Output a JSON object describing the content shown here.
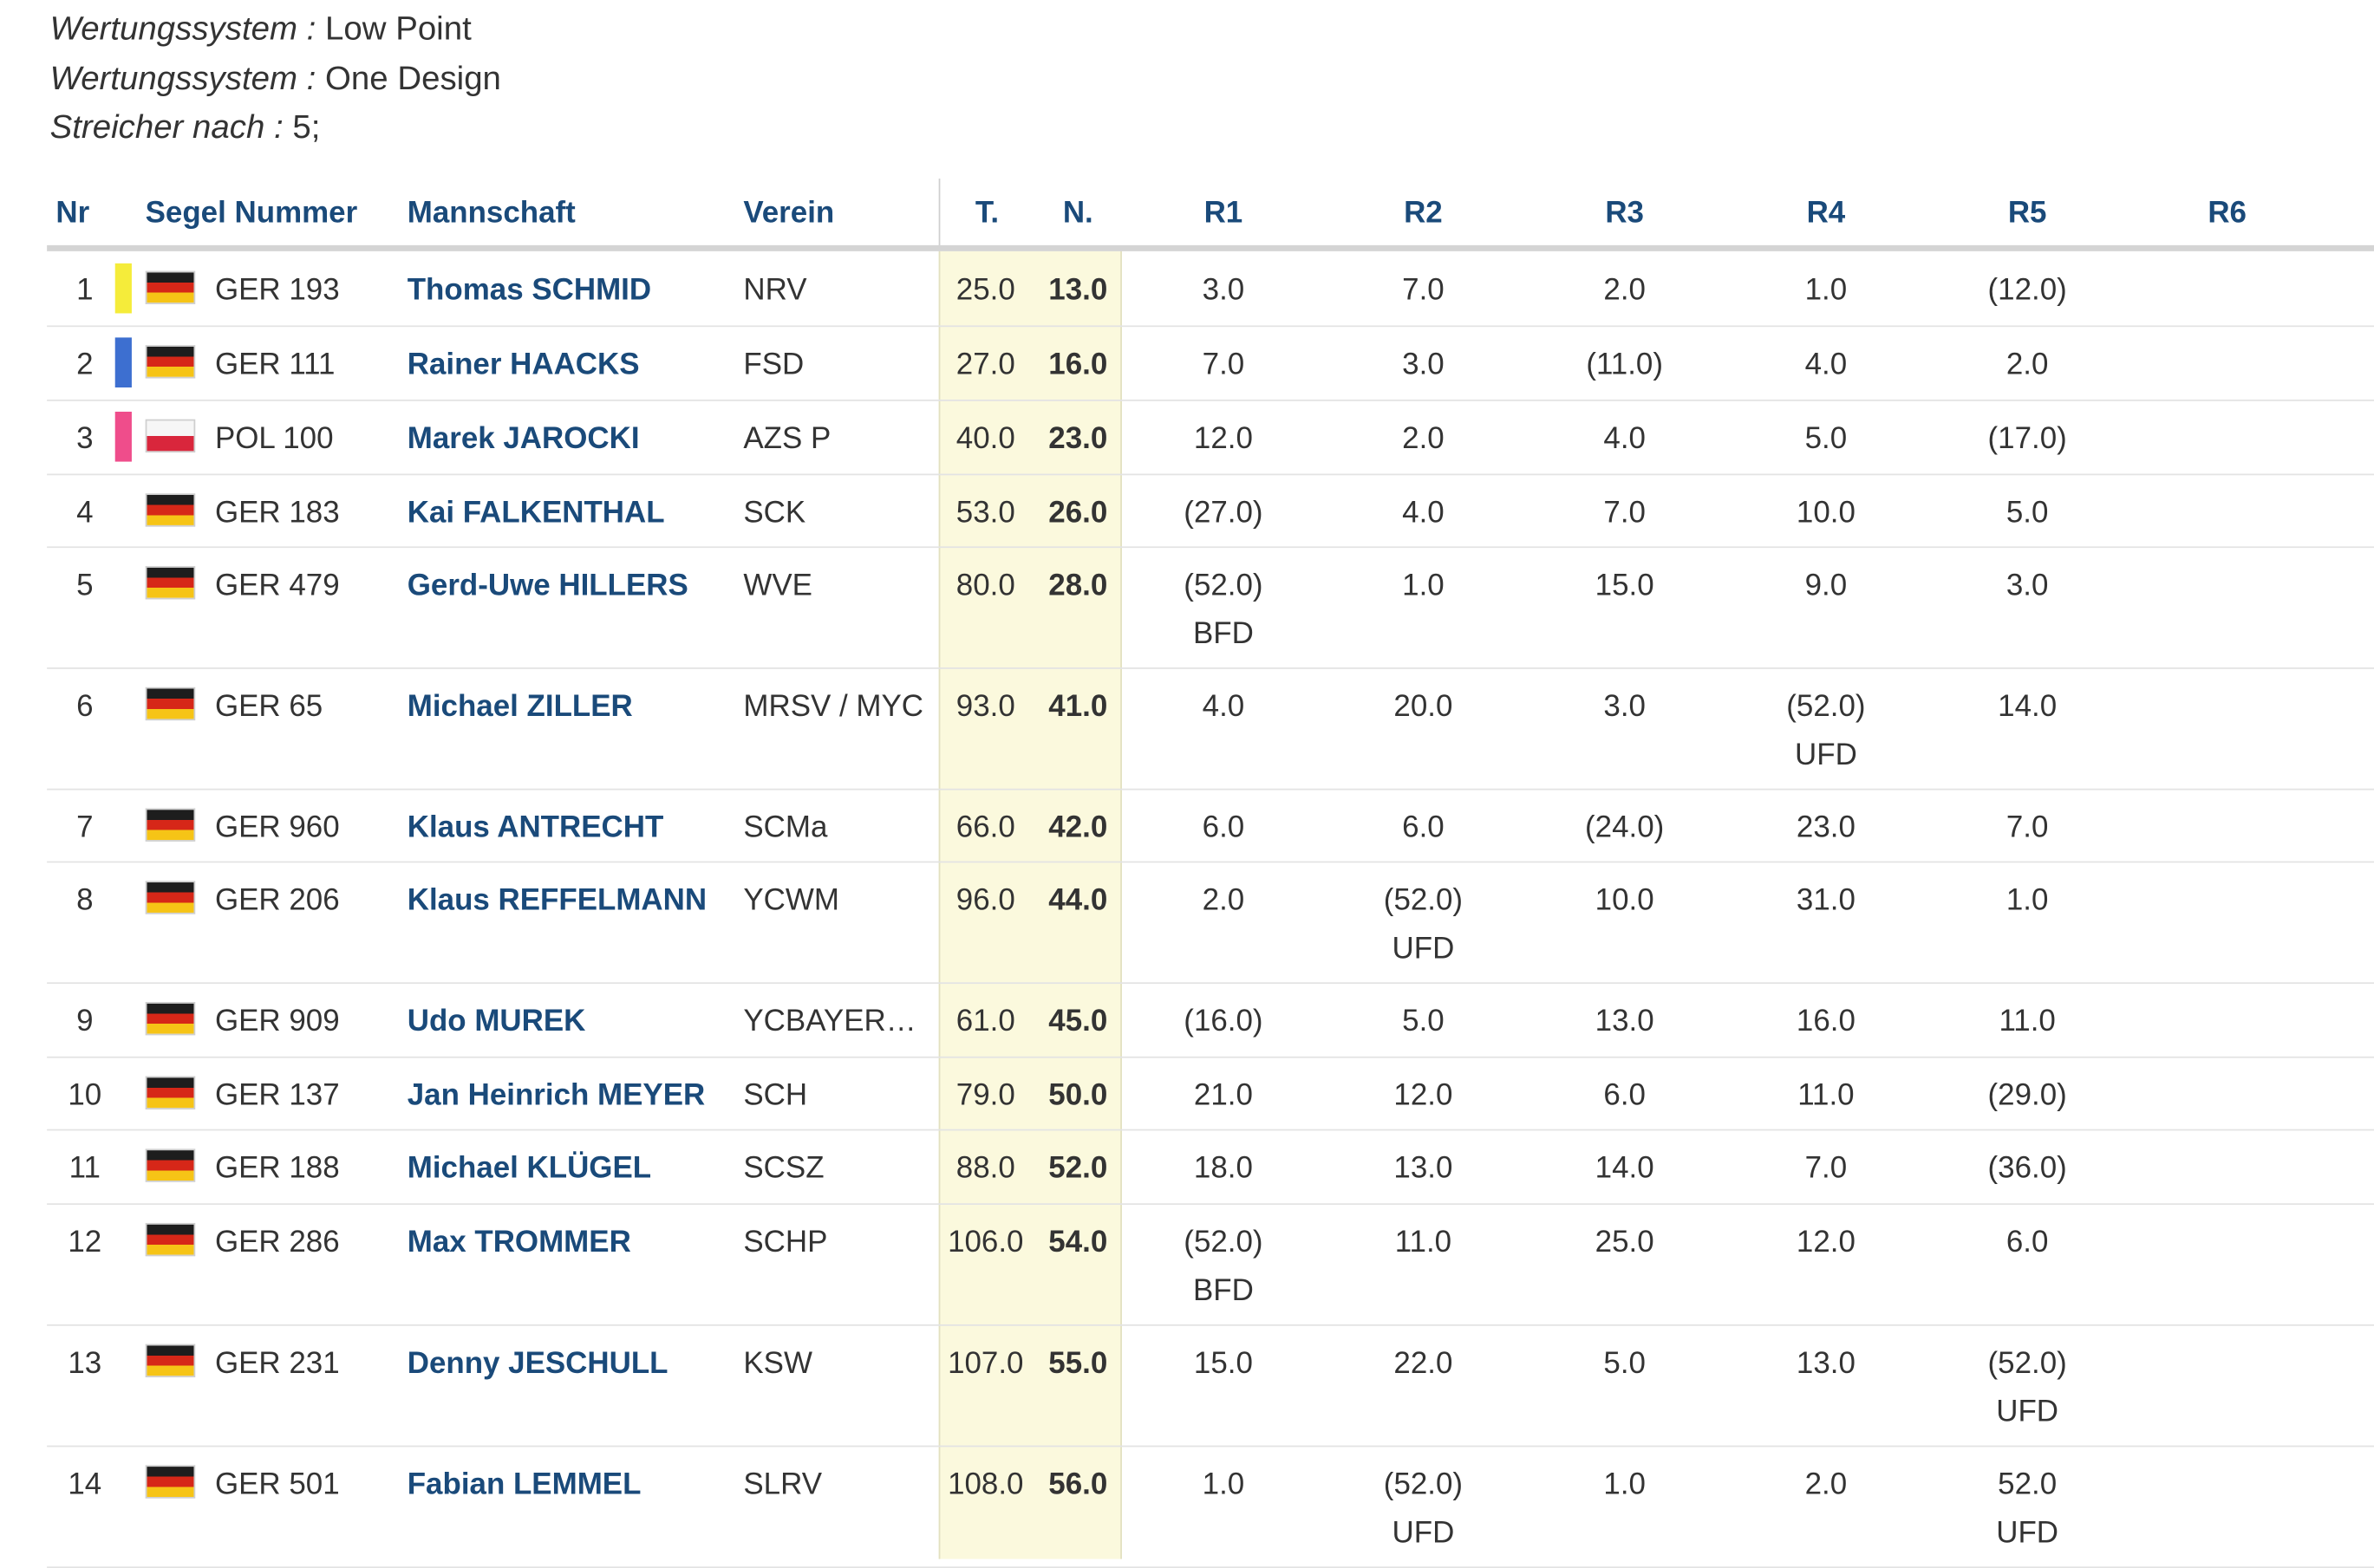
{
  "meta": [
    {
      "key": "Wertungssystem :",
      "value": "Low Point"
    },
    {
      "key": "Wertungssystem :",
      "value": "One Design"
    },
    {
      "key": "Streicher nach :",
      "value": "5;"
    }
  ],
  "table": {
    "headers": {
      "nr": "Nr",
      "sail": "Segel Nummer",
      "crew": "Mannschaft",
      "club": "Verein",
      "total": "T.",
      "net": "N.",
      "races": [
        "R1",
        "R2",
        "R3",
        "R4",
        "R5",
        "R6"
      ]
    },
    "colors": {
      "header_text": "#1a4a7a",
      "highlight_column": "#fbf9dd",
      "gold": "#f5ec3a",
      "silver": "#3d6fd0",
      "bronze": "#ef4d8b"
    },
    "rows": [
      {
        "nr": "1",
        "medal": "gold",
        "flag": "germany-flag-icon",
        "sail": "GER 193",
        "crew": "Thomas SCHMID",
        "club": "NRV",
        "total": "25.0",
        "net": "13.0",
        "races": [
          {
            "score": "3.0",
            "code": ""
          },
          {
            "score": "7.0",
            "code": ""
          },
          {
            "score": "2.0",
            "code": ""
          },
          {
            "score": "1.0",
            "code": ""
          },
          {
            "score": "(12.0)",
            "code": ""
          },
          {
            "score": "",
            "code": ""
          }
        ]
      },
      {
        "nr": "2",
        "medal": "silver",
        "flag": "germany-flag-icon",
        "sail": "GER 111",
        "crew": "Rainer HAACKS",
        "club": "FSD",
        "total": "27.0",
        "net": "16.0",
        "races": [
          {
            "score": "7.0",
            "code": ""
          },
          {
            "score": "3.0",
            "code": ""
          },
          {
            "score": "(11.0)",
            "code": ""
          },
          {
            "score": "4.0",
            "code": ""
          },
          {
            "score": "2.0",
            "code": ""
          },
          {
            "score": "",
            "code": ""
          }
        ]
      },
      {
        "nr": "3",
        "medal": "bronze",
        "flag": "poland-flag-icon",
        "sail": "POL 100",
        "crew": "Marek JAROCKI",
        "club": "AZS P",
        "total": "40.0",
        "net": "23.0",
        "races": [
          {
            "score": "12.0",
            "code": ""
          },
          {
            "score": "2.0",
            "code": ""
          },
          {
            "score": "4.0",
            "code": ""
          },
          {
            "score": "5.0",
            "code": ""
          },
          {
            "score": "(17.0)",
            "code": ""
          },
          {
            "score": "",
            "code": ""
          }
        ]
      },
      {
        "nr": "4",
        "medal": "",
        "flag": "germany-flag-icon",
        "sail": "GER 183",
        "crew": "Kai FALKENTHAL",
        "club": "SCK",
        "total": "53.0",
        "net": "26.0",
        "races": [
          {
            "score": "(27.0)",
            "code": ""
          },
          {
            "score": "4.0",
            "code": ""
          },
          {
            "score": "7.0",
            "code": ""
          },
          {
            "score": "10.0",
            "code": ""
          },
          {
            "score": "5.0",
            "code": ""
          },
          {
            "score": "",
            "code": ""
          }
        ]
      },
      {
        "nr": "5",
        "medal": "",
        "flag": "germany-flag-icon",
        "sail": "GER 479",
        "crew": "Gerd-Uwe HILLERS",
        "club": "WVE",
        "total": "80.0",
        "net": "28.0",
        "races": [
          {
            "score": "(52.0)",
            "code": "BFD"
          },
          {
            "score": "1.0",
            "code": ""
          },
          {
            "score": "15.0",
            "code": ""
          },
          {
            "score": "9.0",
            "code": ""
          },
          {
            "score": "3.0",
            "code": ""
          },
          {
            "score": "",
            "code": ""
          }
        ]
      },
      {
        "nr": "6",
        "medal": "",
        "flag": "germany-flag-icon",
        "sail": "GER 65",
        "crew": "Michael ZILLER",
        "club": "MRSV / MYC",
        "total": "93.0",
        "net": "41.0",
        "races": [
          {
            "score": "4.0",
            "code": ""
          },
          {
            "score": "20.0",
            "code": ""
          },
          {
            "score": "3.0",
            "code": ""
          },
          {
            "score": "(52.0)",
            "code": "UFD"
          },
          {
            "score": "14.0",
            "code": ""
          },
          {
            "score": "",
            "code": ""
          }
        ]
      },
      {
        "nr": "7",
        "medal": "",
        "flag": "germany-flag-icon",
        "sail": "GER 960",
        "crew": "Klaus ANTRECHT",
        "club": "SCMa",
        "total": "66.0",
        "net": "42.0",
        "races": [
          {
            "score": "6.0",
            "code": ""
          },
          {
            "score": "6.0",
            "code": ""
          },
          {
            "score": "(24.0)",
            "code": ""
          },
          {
            "score": "23.0",
            "code": ""
          },
          {
            "score": "7.0",
            "code": ""
          },
          {
            "score": "",
            "code": ""
          }
        ]
      },
      {
        "nr": "8",
        "medal": "",
        "flag": "germany-flag-icon",
        "sail": "GER 206",
        "crew": "Klaus REFFELMANN",
        "club": "YCWM",
        "total": "96.0",
        "net": "44.0",
        "races": [
          {
            "score": "2.0",
            "code": ""
          },
          {
            "score": "(52.0)",
            "code": "UFD"
          },
          {
            "score": "10.0",
            "code": ""
          },
          {
            "score": "31.0",
            "code": ""
          },
          {
            "score": "1.0",
            "code": ""
          },
          {
            "score": "",
            "code": ""
          }
        ]
      },
      {
        "nr": "9",
        "medal": "",
        "flag": "germany-flag-icon",
        "sail": "GER 909",
        "crew": "Udo MUREK",
        "club": "YCBAYERLAND",
        "total": "61.0",
        "net": "45.0",
        "races": [
          {
            "score": "(16.0)",
            "code": ""
          },
          {
            "score": "5.0",
            "code": ""
          },
          {
            "score": "13.0",
            "code": ""
          },
          {
            "score": "16.0",
            "code": ""
          },
          {
            "score": "11.0",
            "code": ""
          },
          {
            "score": "",
            "code": ""
          }
        ]
      },
      {
        "nr": "10",
        "medal": "",
        "flag": "germany-flag-icon",
        "sail": "GER 137",
        "crew": "Jan Heinrich MEYER",
        "club": "SCH",
        "total": "79.0",
        "net": "50.0",
        "races": [
          {
            "score": "21.0",
            "code": ""
          },
          {
            "score": "12.0",
            "code": ""
          },
          {
            "score": "6.0",
            "code": ""
          },
          {
            "score": "11.0",
            "code": ""
          },
          {
            "score": "(29.0)",
            "code": ""
          },
          {
            "score": "",
            "code": ""
          }
        ]
      },
      {
        "nr": "11",
        "medal": "",
        "flag": "germany-flag-icon",
        "sail": "GER 188",
        "crew": "Michael KLÜGEL",
        "club": "SCSZ",
        "total": "88.0",
        "net": "52.0",
        "races": [
          {
            "score": "18.0",
            "code": ""
          },
          {
            "score": "13.0",
            "code": ""
          },
          {
            "score": "14.0",
            "code": ""
          },
          {
            "score": "7.0",
            "code": ""
          },
          {
            "score": "(36.0)",
            "code": ""
          },
          {
            "score": "",
            "code": ""
          }
        ]
      },
      {
        "nr": "12",
        "medal": "",
        "flag": "germany-flag-icon",
        "sail": "GER 286",
        "crew": "Max TROMMER",
        "club": "SCHP",
        "total": "106.0",
        "net": "54.0",
        "races": [
          {
            "score": "(52.0)",
            "code": "BFD"
          },
          {
            "score": "11.0",
            "code": ""
          },
          {
            "score": "25.0",
            "code": ""
          },
          {
            "score": "12.0",
            "code": ""
          },
          {
            "score": "6.0",
            "code": ""
          },
          {
            "score": "",
            "code": ""
          }
        ]
      },
      {
        "nr": "13",
        "medal": "",
        "flag": "germany-flag-icon",
        "sail": "GER 231",
        "crew": "Denny JESCHULL",
        "club": "KSW",
        "total": "107.0",
        "net": "55.0",
        "races": [
          {
            "score": "15.0",
            "code": ""
          },
          {
            "score": "22.0",
            "code": ""
          },
          {
            "score": "5.0",
            "code": ""
          },
          {
            "score": "13.0",
            "code": ""
          },
          {
            "score": "(52.0)",
            "code": "UFD"
          },
          {
            "score": "",
            "code": ""
          }
        ]
      },
      {
        "nr": "14",
        "medal": "",
        "flag": "germany-flag-icon",
        "sail": "GER 501",
        "crew": "Fabian LEMMEL",
        "club": "SLRV",
        "total": "108.0",
        "net": "56.0",
        "races": [
          {
            "score": "1.0",
            "code": ""
          },
          {
            "score": "(52.0)",
            "code": "UFD"
          },
          {
            "score": "1.0",
            "code": ""
          },
          {
            "score": "2.0",
            "code": ""
          },
          {
            "score": "52.0",
            "code": "UFD"
          },
          {
            "score": "",
            "code": ""
          }
        ]
      }
    ]
  }
}
